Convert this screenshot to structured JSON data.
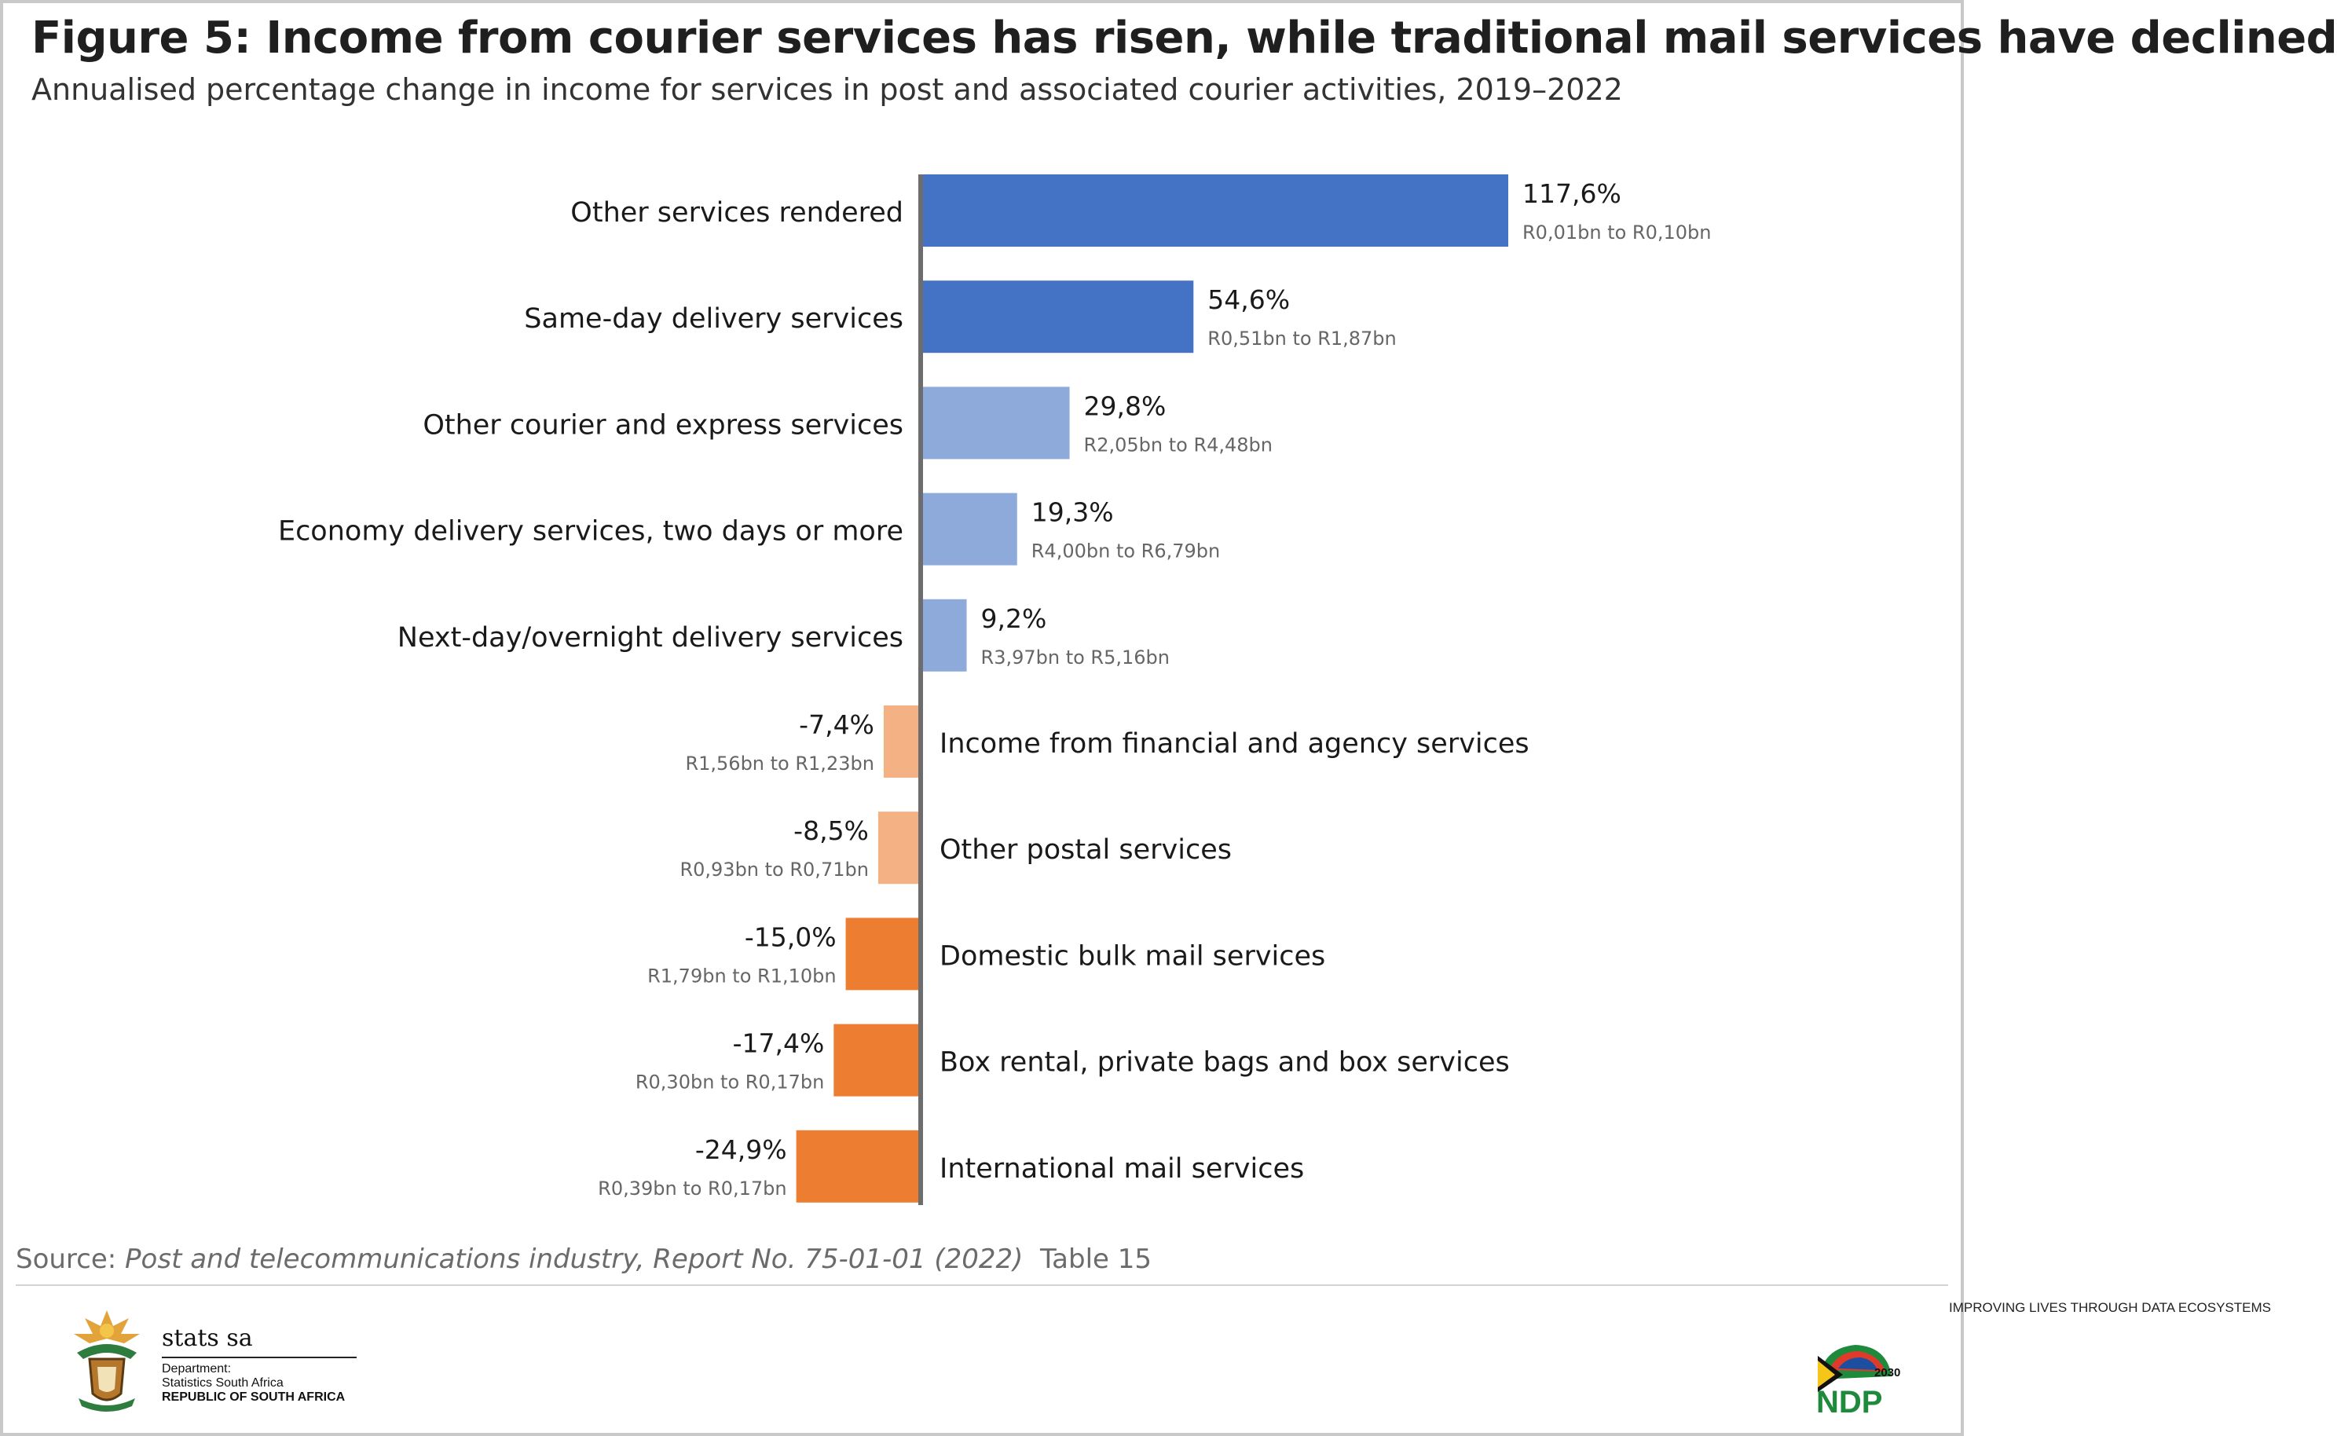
{
  "title": "Figure 5: Income from courier services has risen, while traditional mail services have declined",
  "subtitle": "Annualised percentage change in income for services in post and associated courier activities, 2019–2022",
  "colors": {
    "positive_dark": "#4472c4",
    "positive_light": "#8eaadb",
    "negative_light": "#f4b183",
    "negative_dark": "#ed7d31",
    "axis": "#6d6d6d",
    "label_text": "#1a1a1a",
    "range_text": "#666666"
  },
  "chart_data": {
    "type": "bar",
    "orientation": "horizontal",
    "xlim": [
      -24.9,
      117.6
    ],
    "categories": [
      "Other services rendered",
      "Same-day delivery services",
      "Other courier and express services",
      "Economy delivery services, two days or more",
      "Next-day/overnight delivery services",
      "Income from financial and agency services",
      "Other postal services",
      "Domestic bulk mail services",
      "Box rental, private bags and box services",
      "International mail services"
    ],
    "values": [
      117.6,
      54.6,
      29.8,
      19.3,
      9.2,
      -7.4,
      -8.5,
      -15.0,
      -17.4,
      -24.9
    ],
    "value_labels": [
      "117,6%",
      "54,6%",
      "29,8%",
      "19,3%",
      "9,2%",
      "-7,4%",
      "-8,5%",
      "-15,0%",
      "-17,4%",
      "-24,9%"
    ],
    "range_labels": [
      "R0,01bn to R0,10bn",
      "R0,51bn to R1,87bn",
      "R2,05bn to R4,48bn",
      "R4,00bn to R6,79bn",
      "R3,97bn to R5,16bn",
      "R1,56bn to R1,23bn",
      "R0,93bn to R0,71bn",
      "R1,79bn to R1,10bn",
      "R0,30bn to R0,17bn",
      "R0,39bn to R0,17bn"
    ],
    "bar_colors": [
      "#4472c4",
      "#4472c4",
      "#8eaadb",
      "#8eaadb",
      "#8eaadb",
      "#f4b183",
      "#f4b183",
      "#ed7d31",
      "#ed7d31",
      "#ed7d31"
    ]
  },
  "source": {
    "prefix": "Source: ",
    "reference": "Post and telecommunications industry, Report No. 75-01-01 (2022)",
    "table": "  Table 15"
  },
  "footer": {
    "tagline": "IMPROVING LIVES THROUGH DATA ECOSYSTEMS",
    "org_name": "stats sa",
    "dept_line1": "Department:",
    "dept_line2": "Statistics South Africa",
    "country": "REPUBLIC OF SOUTH AFRICA",
    "ndp_year": "2030",
    "ndp_text": "NDP"
  }
}
